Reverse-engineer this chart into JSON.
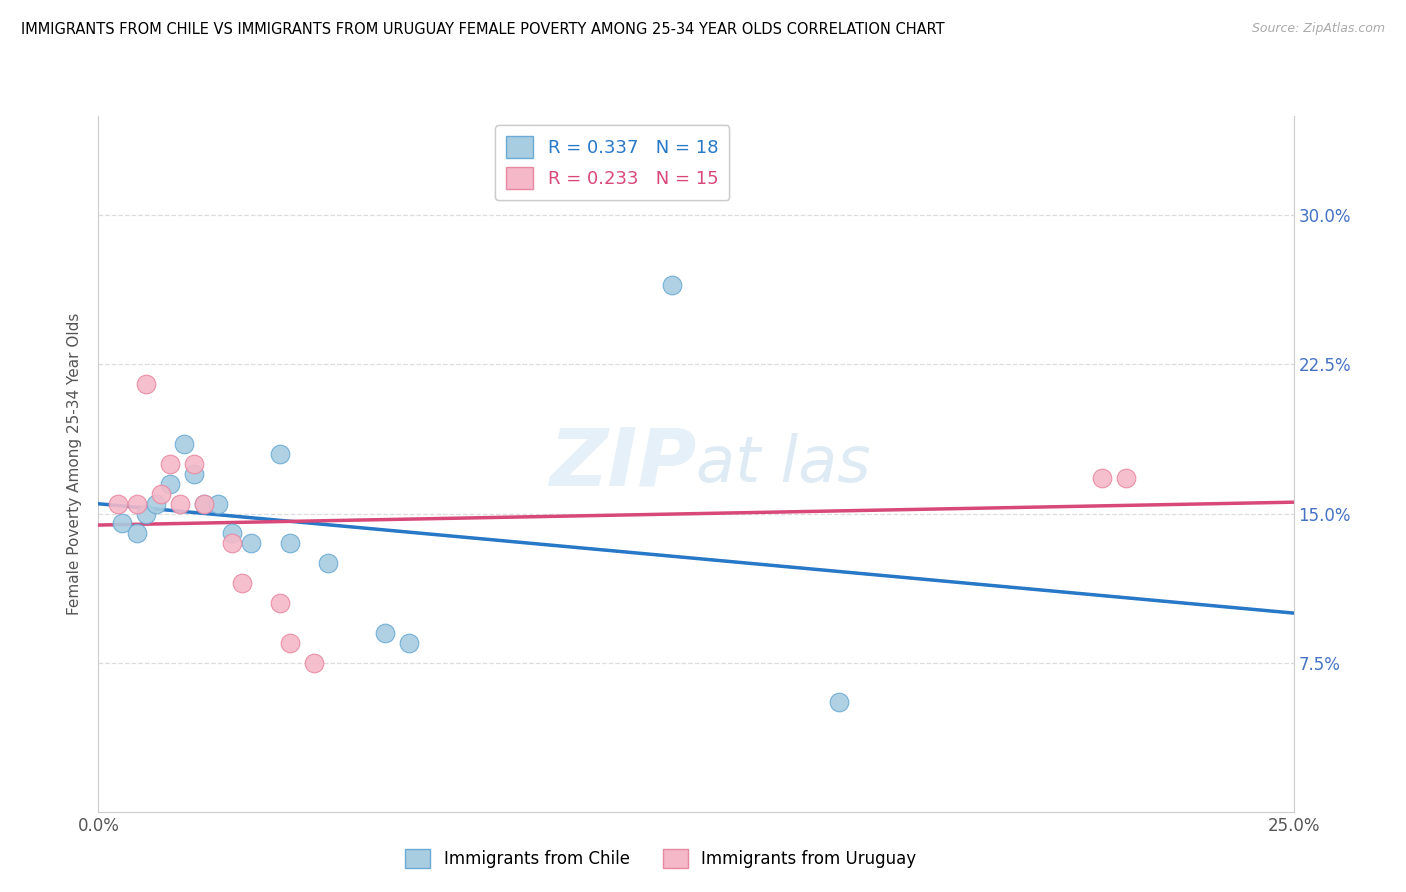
{
  "title": "IMMIGRANTS FROM CHILE VS IMMIGRANTS FROM URUGUAY FEMALE POVERTY AMONG 25-34 YEAR OLDS CORRELATION CHART",
  "source": "Source: ZipAtlas.com",
  "ylabel": "Female Poverty Among 25-34 Year Olds",
  "chile_R": 0.337,
  "chile_N": 18,
  "uruguay_R": 0.233,
  "uruguay_N": 15,
  "chile_color": "#a8cce0",
  "chile_edge_color": "#6aaad4",
  "uruguay_color": "#f4b8c8",
  "uruguay_edge_color": "#e888a0",
  "chile_line_color": "#2878c8",
  "uruguay_line_color": "#d84878",
  "dashed_color": "#88bce0",
  "xlim": [
    0.0,
    0.25
  ],
  "ylim": [
    0.0,
    0.35
  ],
  "ytick_vals": [
    0.0,
    0.075,
    0.15,
    0.225,
    0.3
  ],
  "ytick_labels_left": [
    "",
    "",
    "",
    "",
    ""
  ],
  "ytick_labels_right": [
    "",
    "7.5%",
    "15.0%",
    "22.5%",
    "30.0%"
  ],
  "xtick_vals": [
    0.0,
    0.05,
    0.1,
    0.15,
    0.2,
    0.25
  ],
  "xtick_labels": [
    "0.0%",
    "",
    "",
    "",
    "",
    "25.0%"
  ],
  "chile_x": [
    0.005,
    0.008,
    0.01,
    0.012,
    0.015,
    0.018,
    0.02,
    0.022,
    0.025,
    0.028,
    0.032,
    0.038,
    0.04,
    0.048,
    0.06,
    0.065,
    0.12,
    0.155
  ],
  "chile_y": [
    0.145,
    0.14,
    0.15,
    0.155,
    0.165,
    0.185,
    0.17,
    0.155,
    0.155,
    0.14,
    0.135,
    0.18,
    0.135,
    0.125,
    0.09,
    0.085,
    0.265,
    0.055
  ],
  "uruguay_x": [
    0.004,
    0.008,
    0.01,
    0.013,
    0.015,
    0.017,
    0.02,
    0.022,
    0.028,
    0.03,
    0.038,
    0.04,
    0.045,
    0.21,
    0.215
  ],
  "uruguay_y": [
    0.155,
    0.155,
    0.215,
    0.16,
    0.175,
    0.155,
    0.175,
    0.155,
    0.135,
    0.115,
    0.105,
    0.085,
    0.075,
    0.168,
    0.168
  ],
  "watermark_text": "ZIPat las"
}
